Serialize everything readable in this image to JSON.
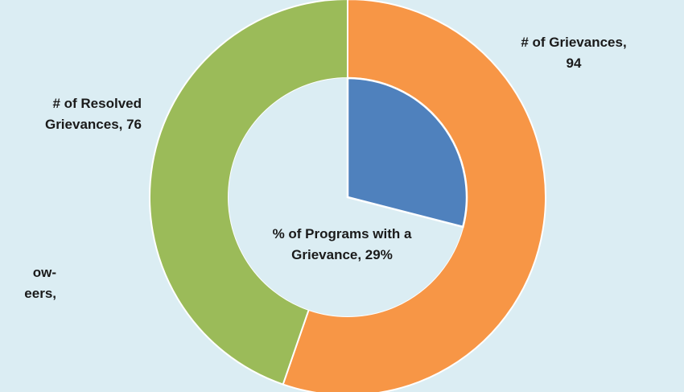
{
  "chart_data": {
    "type": "pie",
    "title": "",
    "inner": {
      "label_lines": [
        "% of Programs with a",
        "Grievance, 29%"
      ],
      "value": 29,
      "max": 100,
      "color": "#4f81bd"
    },
    "outer": {
      "slices": [
        {
          "label_lines": [
            "# of Grievances,",
            "94"
          ],
          "value": 94,
          "color": "#f79646"
        },
        {
          "label_lines": [
            "# of Resolved",
            "Grievances, 76"
          ],
          "value": 76,
          "color": "#9bbb59"
        }
      ]
    },
    "partial_label_lines": [
      "ow-",
      "eers,"
    ]
  },
  "colors": {
    "background": "#dbedf3",
    "separator": "#ffffff"
  }
}
